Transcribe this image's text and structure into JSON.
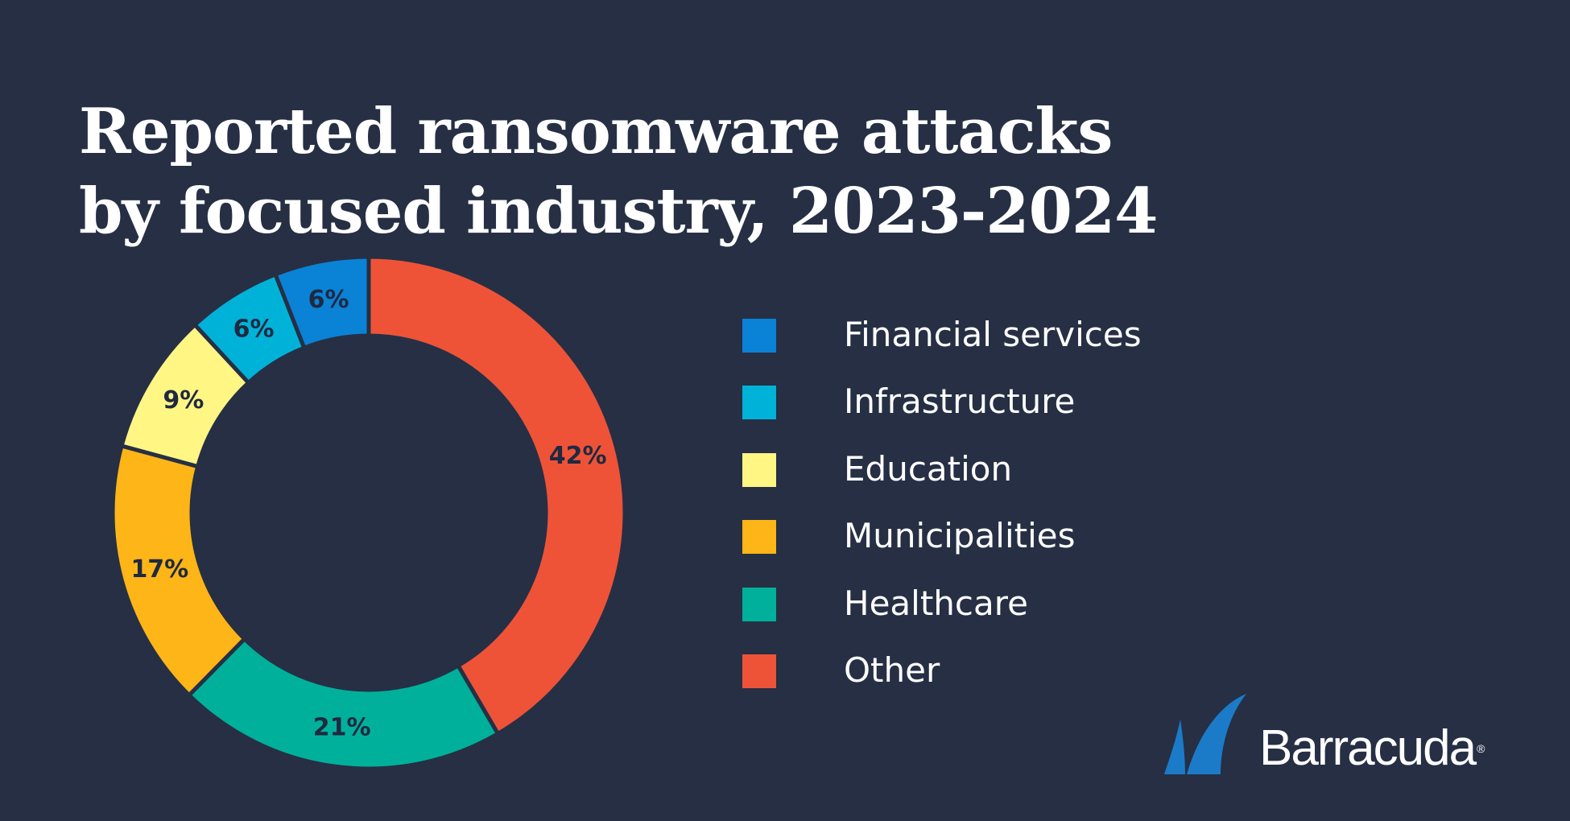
{
  "title": {
    "line1": "Reported ransomware attacks",
    "line2": "by focused industry, 2023-2024"
  },
  "chart_data": {
    "type": "pie",
    "title": "Reported ransomware attacks by focused industry, 2023-2024",
    "donut": true,
    "legend_placement": "right",
    "value_unit": "%",
    "slices": [
      {
        "name": "Other",
        "value": 42,
        "label": "42%",
        "color": "#ee5338"
      },
      {
        "name": "Healthcare",
        "value": 21,
        "label": "21%",
        "color": "#00b09b"
      },
      {
        "name": "Municipalities",
        "value": 17,
        "label": "17%",
        "color": "#fdb517"
      },
      {
        "name": "Education",
        "value": 9,
        "label": "9%",
        "color": "#fff684"
      },
      {
        "name": "Infrastructure",
        "value": 6,
        "label": "6%",
        "color": "#00b2d8"
      },
      {
        "name": "Financial services",
        "value": 6,
        "label": "6%",
        "color": "#0a82d6"
      }
    ]
  },
  "legend": {
    "items": [
      {
        "label": "Financial services",
        "color": "#0a82d6"
      },
      {
        "label": "Infrastructure",
        "color": "#00b2d8"
      },
      {
        "label": "Education",
        "color": "#fff684"
      },
      {
        "label": "Municipalities",
        "color": "#fdb517"
      },
      {
        "label": "Healthcare",
        "color": "#00b09b"
      },
      {
        "label": "Other",
        "color": "#ee5338"
      }
    ]
  },
  "logo": {
    "text": "Barracuda",
    "registered": "®",
    "icon": "barracuda-fin-icon",
    "color": "#1b7bc8"
  },
  "colors": {
    "background": "#262f44",
    "separator": "#262f44",
    "label_text": "#1f2940"
  }
}
